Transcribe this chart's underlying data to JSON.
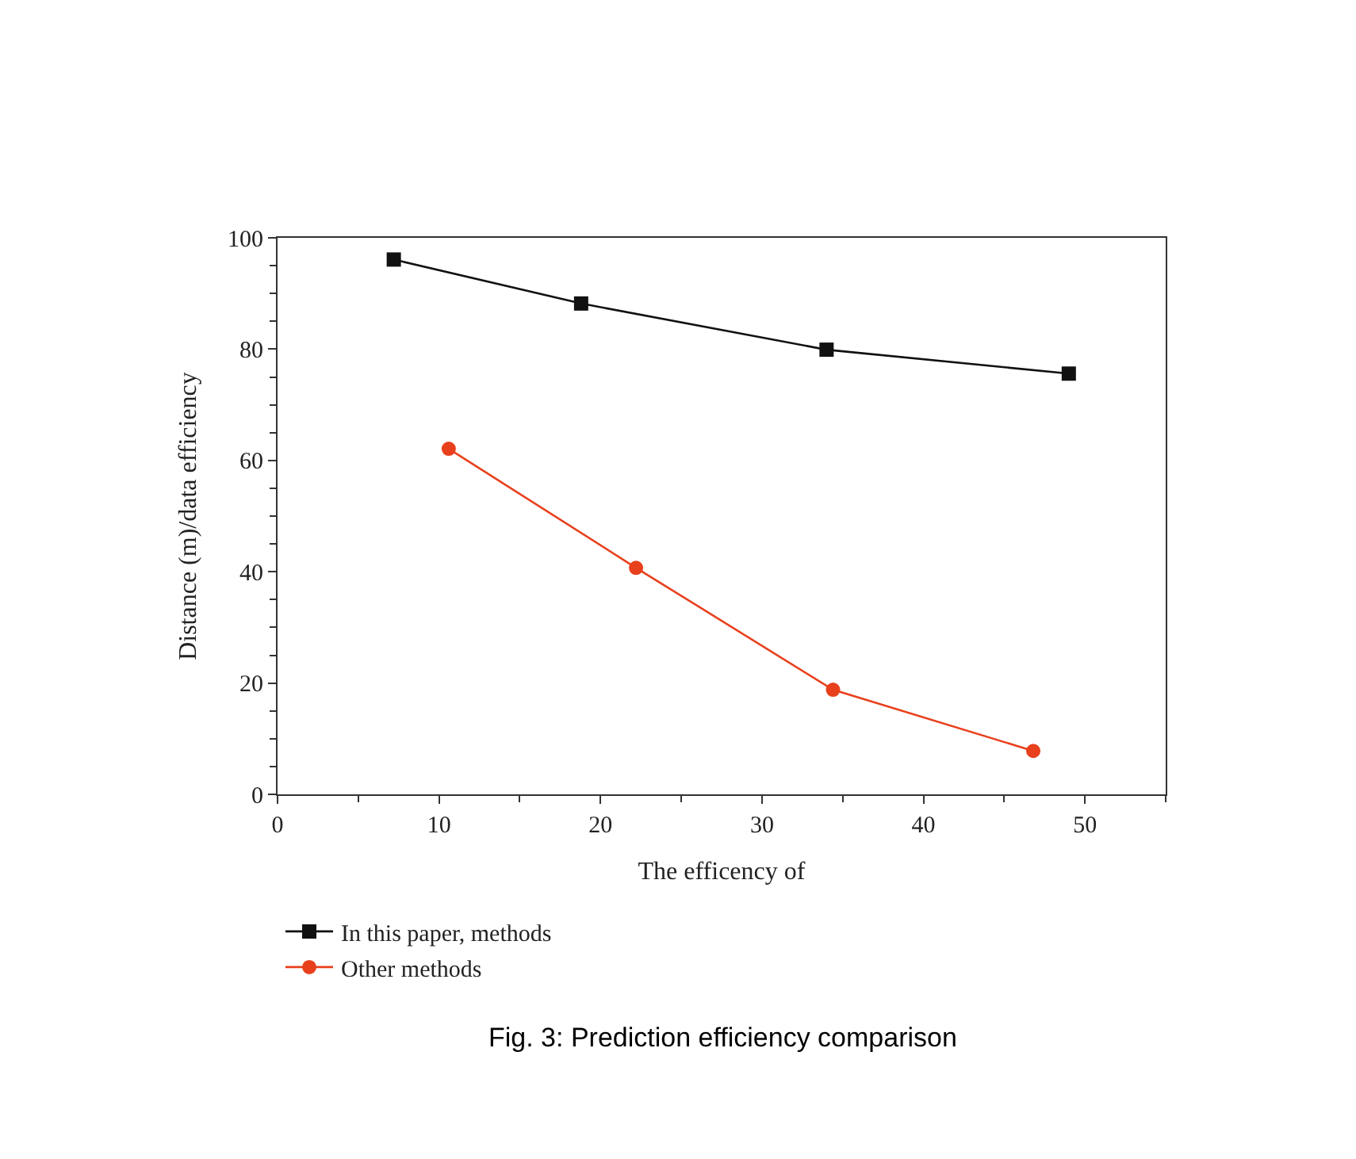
{
  "chart_data": {
    "type": "line",
    "xlabel": "The efficency of",
    "ylabel": "Distance (m)/data efficiency",
    "xlim": [
      0,
      55
    ],
    "xticks": [
      0,
      10,
      20,
      30,
      40,
      50
    ],
    "ylim": [
      0,
      100
    ],
    "yticks": [
      0,
      20,
      40,
      60,
      80,
      100
    ],
    "legend": "bottom left",
    "line_style": "solid",
    "series": [
      {
        "name": "In this paper, methods",
        "color": "#111111",
        "marker": "square",
        "x": [
          7.2,
          18.8,
          34.0,
          49.0
        ],
        "values": [
          96.1,
          88.2,
          79.9,
          75.6
        ]
      },
      {
        "name": "Other methods",
        "color": "#e8401c",
        "marker": "circle",
        "x": [
          10.6,
          22.2,
          34.4,
          46.8
        ],
        "values": [
          62.1,
          40.7,
          18.8,
          7.8
        ]
      }
    ],
    "annotations": [
      "Fig. 3: Prediction efficiency comparison"
    ]
  }
}
